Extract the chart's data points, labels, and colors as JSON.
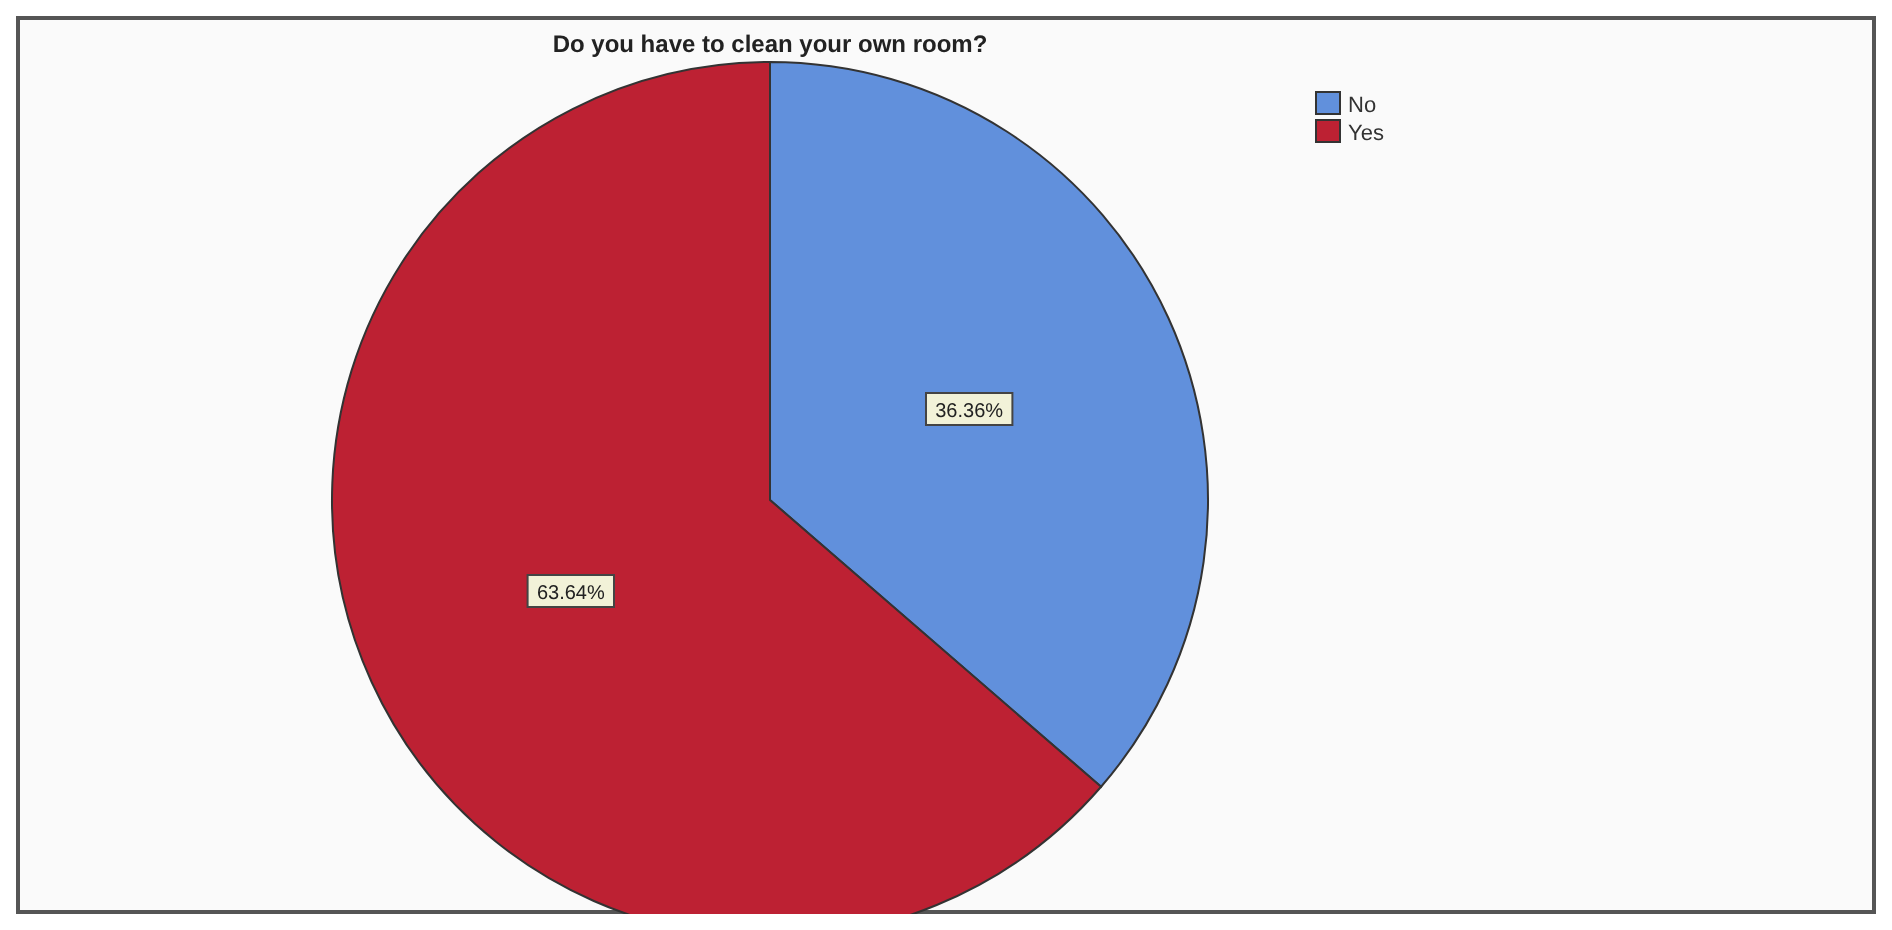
{
  "chart_data": {
    "type": "pie",
    "title": "Do you have to clean your own room?",
    "categories": [
      "No",
      "Yes"
    ],
    "values": [
      36.36,
      63.64
    ],
    "colors": [
      "#6190dc",
      "#bd2133"
    ],
    "value_labels": [
      "36.36%",
      "63.64%"
    ],
    "legend": "top right"
  }
}
